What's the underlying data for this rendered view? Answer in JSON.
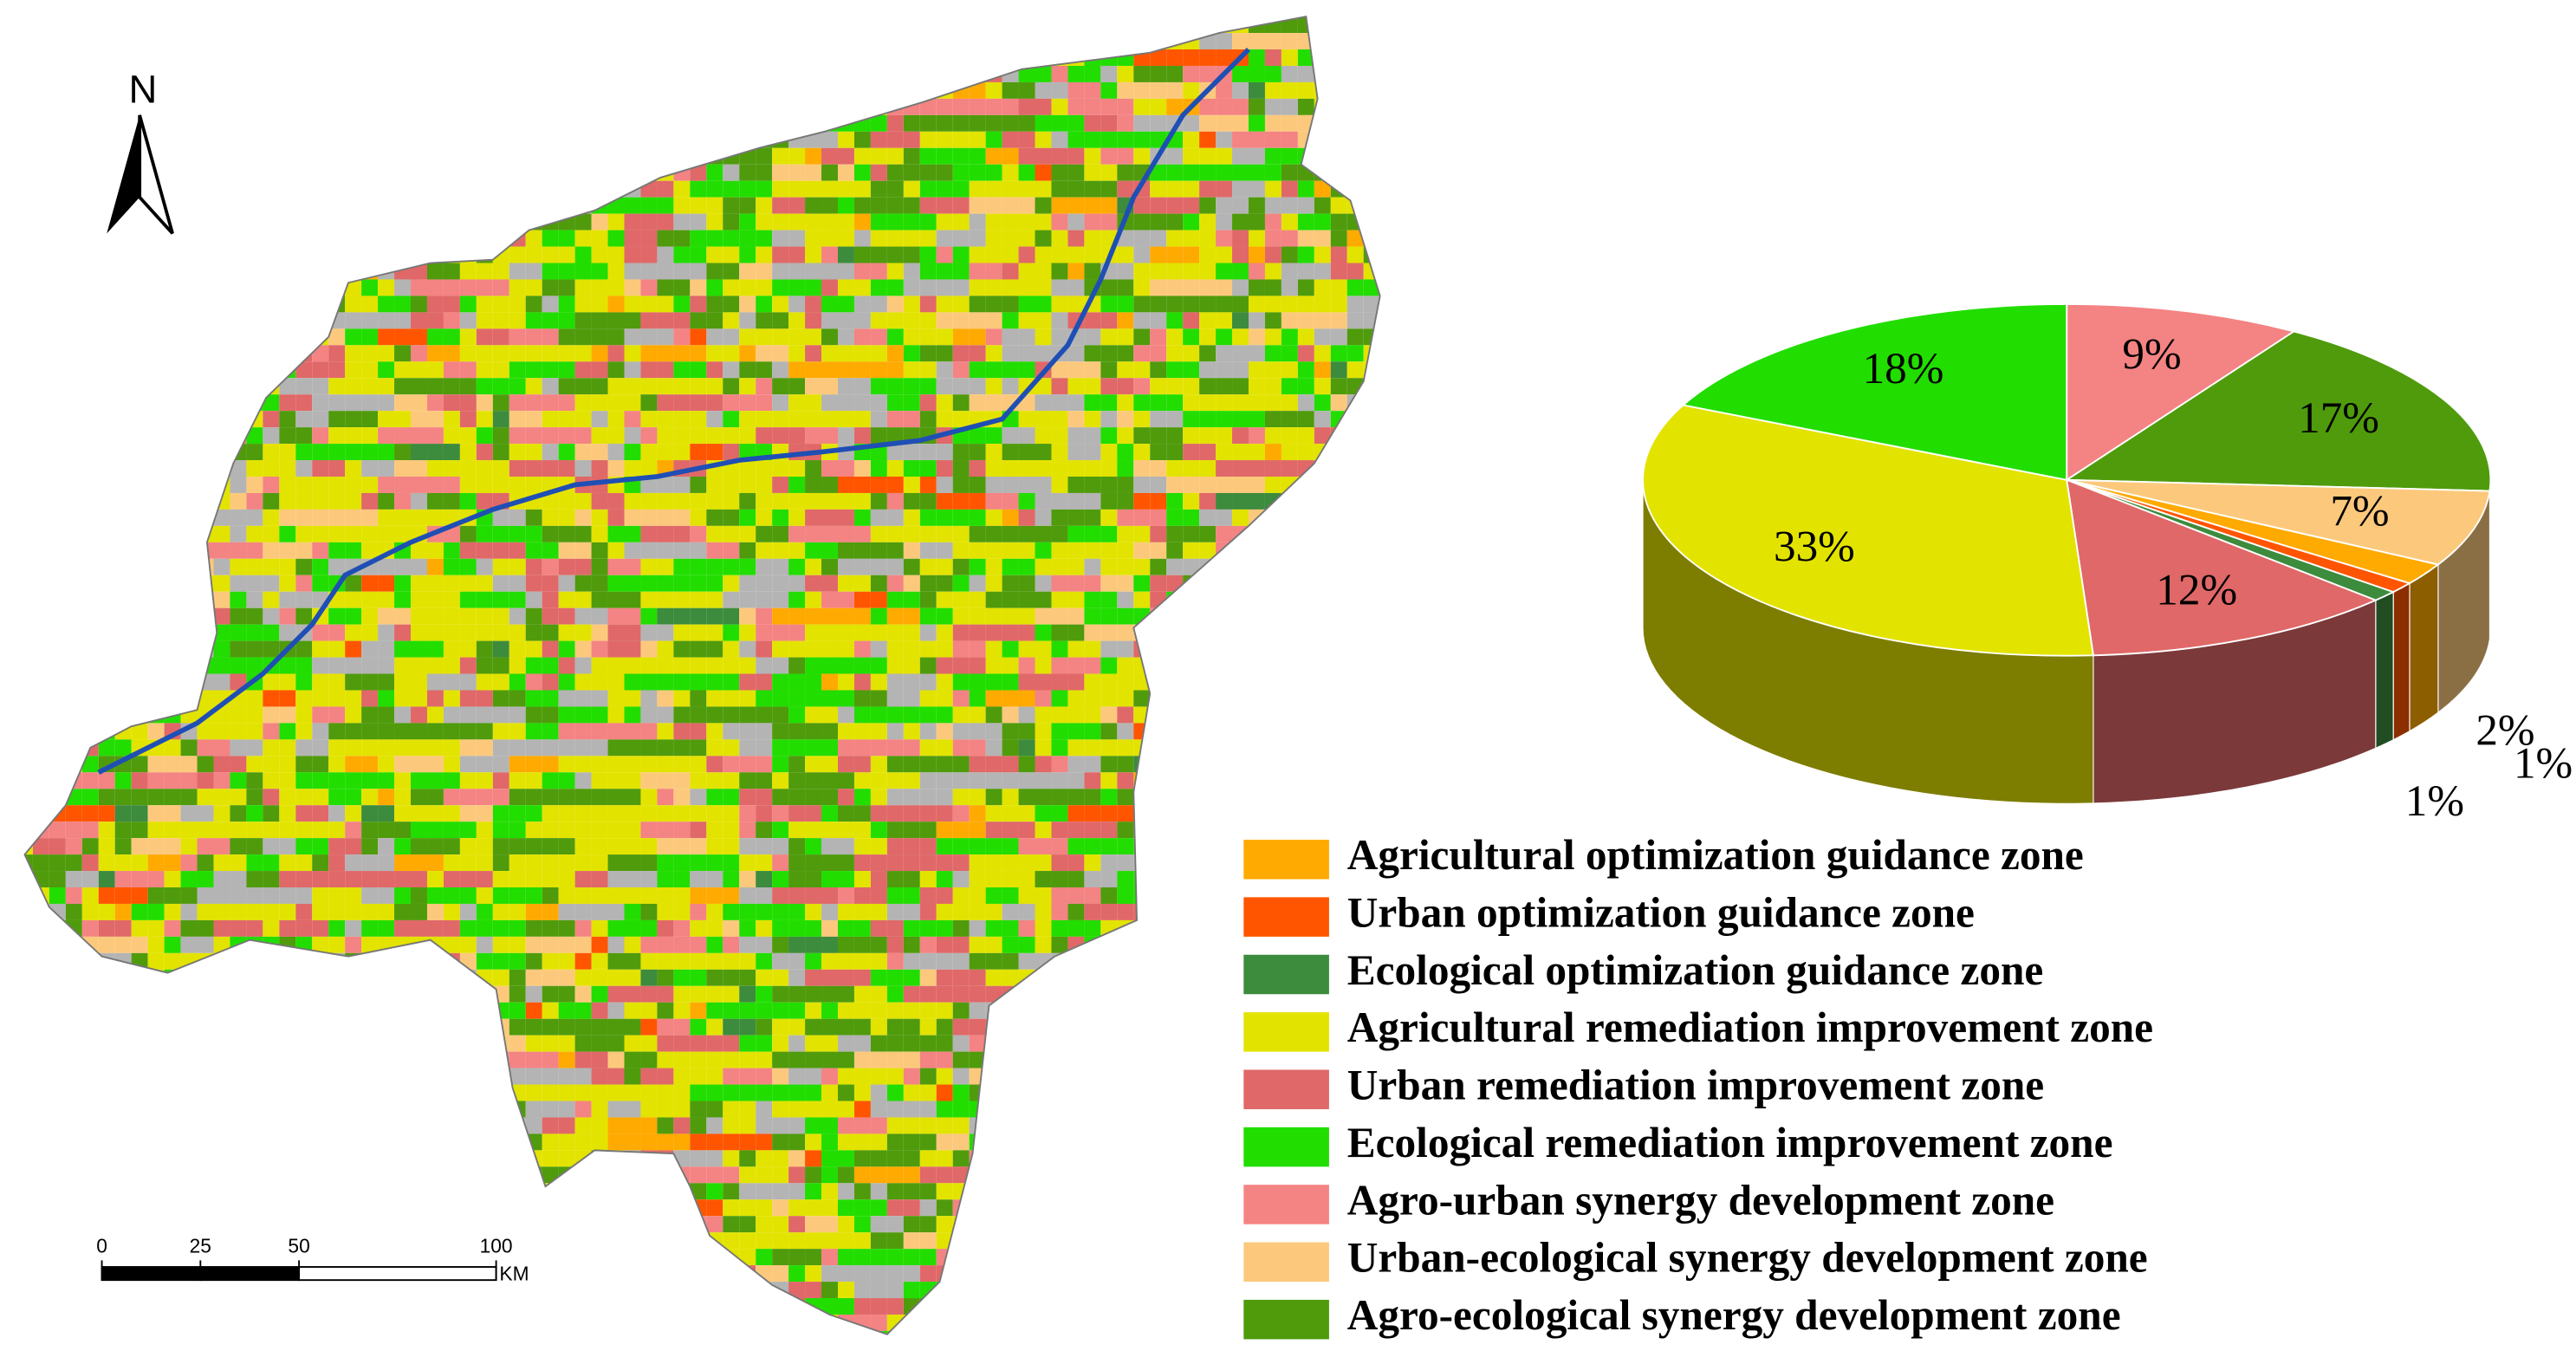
{
  "chart_data": {
    "type": "pie",
    "categories": [
      "Agricultural optimization guidance zone",
      "Urban optimization guidance zone",
      "Ecological optimization guidance zone",
      "Agricultural remediation improvement zone",
      "Urban remediation improvement zone",
      "Ecological remediation improvement zone",
      "Agro-urban synergy development zone",
      "Urban-ecological synergy development zone",
      "Agro-ecological synergy development zone"
    ],
    "values": [
      2,
      1,
      1,
      33,
      12,
      18,
      9,
      7,
      17
    ],
    "value_labels": [
      "2%",
      "1%",
      "1%",
      "33%",
      "12%",
      "18%",
      "9%",
      "7%",
      "17%"
    ],
    "colors": [
      "#ffaa00",
      "#ff5500",
      "#3d8b3d",
      "#e3e300",
      "#e06868",
      "#22dd00",
      "#f48383",
      "#fcc97c",
      "#4f9b0c"
    ],
    "legend": "bottom-right",
    "style": "3d"
  },
  "map": {
    "north": "N",
    "scalebar": {
      "ticks": [
        0,
        25,
        50,
        100
      ],
      "unit": "KM"
    }
  }
}
